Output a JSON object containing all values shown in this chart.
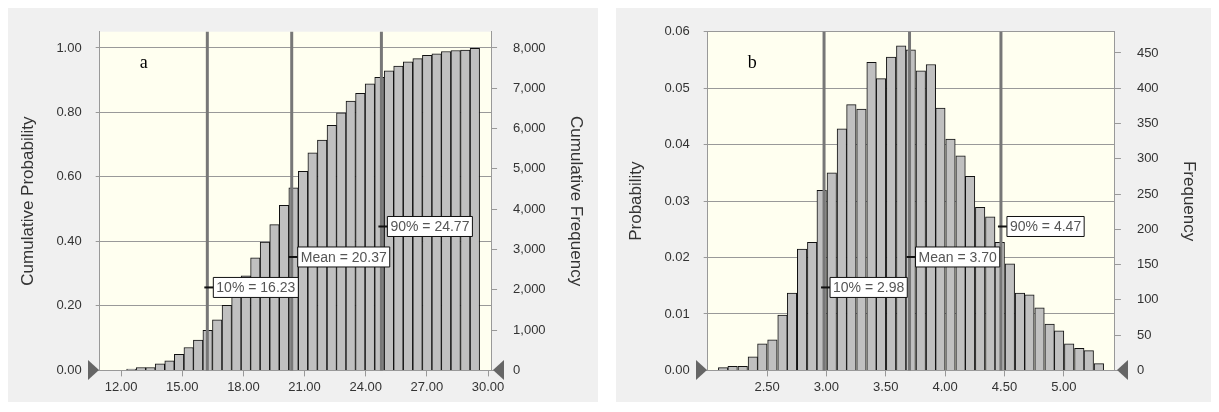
{
  "chart_data": [
    {
      "type": "histogram",
      "bins": [
        12.27,
        12.74,
        13.21,
        13.67,
        14.14,
        14.61,
        15.08,
        15.55,
        16.01,
        16.48,
        16.95,
        17.42,
        17.89,
        18.35,
        18.82,
        19.29,
        19.76,
        20.23,
        20.69,
        21.16,
        21.63,
        22.1,
        22.57,
        23.03,
        23.5,
        23.97,
        24.44,
        24.91,
        25.37,
        25.84,
        26.31,
        26.78,
        27.25,
        27.71,
        28.18,
        28.65,
        29.12,
        29.59
      ],
      "values": [
        0.004,
        0.009,
        0.009,
        0.02,
        0.03,
        0.05,
        0.071,
        0.094,
        0.124,
        0.157,
        0.202,
        0.248,
        0.293,
        0.349,
        0.398,
        0.452,
        0.512,
        0.566,
        0.617,
        0.675,
        0.714,
        0.76,
        0.799,
        0.835,
        0.859,
        0.889,
        0.909,
        0.929,
        0.944,
        0.957,
        0.967,
        0.977,
        0.982,
        0.989,
        0.992,
        0.993,
        0.999
      ],
      "color": "#c0c0c0",
      "xlim": [
        10.95,
        30.15
      ],
      "xticks": [
        {
          "value": 12,
          "label": "12.00"
        },
        {
          "value": 15,
          "label": "15.00"
        },
        {
          "value": 18,
          "label": "18.00"
        },
        {
          "value": 21,
          "label": "21.00"
        },
        {
          "value": 24,
          "label": "24.00"
        },
        {
          "value": 27,
          "label": "27.00"
        },
        {
          "value": 30,
          "label": "30.00"
        }
      ],
      "ylim": [
        0,
        1.05
      ],
      "yticks": [
        {
          "value": 0,
          "label": "0.00"
        },
        {
          "value": 0.2,
          "label": "0.20"
        },
        {
          "value": 0.4,
          "label": "0.40"
        },
        {
          "value": 0.6,
          "label": "0.60"
        },
        {
          "value": 0.8,
          "label": "0.80"
        },
        {
          "value": 1,
          "label": "1.00"
        }
      ],
      "y2lim": [
        0,
        8400
      ],
      "y2ticks": [
        0,
        {
          "value": 1000,
          "label": "1,000"
        },
        {
          "value": 2000,
          "label": "2,000"
        },
        {
          "value": 3000,
          "label": "3,000"
        },
        {
          "value": 4000,
          "label": "4,000"
        },
        {
          "value": 5000,
          "label": "5,000"
        },
        {
          "value": 6000,
          "label": "6,000"
        },
        {
          "value": 7000,
          "label": "7,000"
        },
        {
          "value": 8000,
          "label": "8,000"
        }
      ],
      "ylabel": "Cumulative Probability",
      "y2label": "Cumulative Frequency",
      "grid": "y",
      "ref_lines": [
        {
          "axis": "x",
          "value": 16.23,
          "label": "10% = 16.23",
          "color": "#777777"
        },
        {
          "axis": "x",
          "value": 20.37,
          "label": "Mean = 20.37",
          "color": "#777777"
        },
        {
          "axis": "x",
          "value": 24.77,
          "label": "90% = 24.77",
          "color": "#777777"
        }
      ],
      "annotations": [
        "a"
      ]
    },
    {
      "type": "histogram",
      "bins": [
        2.09,
        2.17,
        2.25,
        2.34,
        2.42,
        2.5,
        2.59,
        2.67,
        2.75,
        2.84,
        2.92,
        3.0,
        3.09,
        3.17,
        3.25,
        3.34,
        3.42,
        3.5,
        3.59,
        3.67,
        3.75,
        3.84,
        3.92,
        4.0,
        4.09,
        4.17,
        4.25,
        4.34,
        4.42,
        4.5,
        4.59,
        4.67,
        4.75,
        4.84,
        4.92,
        5.0,
        5.09,
        5.17,
        5.25,
        5.34
      ],
      "values": [
        0.0005,
        0.0007,
        0.0007,
        0.0024,
        0.0047,
        0.0054,
        0.0098,
        0.0137,
        0.0215,
        0.0227,
        0.0319,
        0.035,
        0.0428,
        0.0471,
        0.0463,
        0.0546,
        0.0517,
        0.0555,
        0.0575,
        0.0568,
        0.0531,
        0.0542,
        0.0465,
        0.041,
        0.038,
        0.0344,
        0.0289,
        0.0272,
        0.0227,
        0.0189,
        0.0137,
        0.0134,
        0.0111,
        0.0082,
        0.007,
        0.0047,
        0.0039,
        0.0035,
        0.0012
      ],
      "color": "#c0c0c0",
      "xlim": [
        2.0,
        5.43
      ],
      "xticks": [
        {
          "value": 2.5,
          "label": "2.50"
        },
        {
          "value": 3,
          "label": "3.00"
        },
        {
          "value": 3.5,
          "label": "3.50"
        },
        {
          "value": 4,
          "label": "4.00"
        },
        {
          "value": 4.5,
          "label": "4.50"
        },
        {
          "value": 5,
          "label": "5.00"
        }
      ],
      "ylim": [
        0,
        0.06
      ],
      "yticks": [
        {
          "value": 0,
          "label": "0.00"
        },
        {
          "value": 0.01,
          "label": "0.01"
        },
        {
          "value": 0.02,
          "label": "0.02"
        },
        {
          "value": 0.03,
          "label": "0.03"
        },
        {
          "value": 0.04,
          "label": "0.04"
        },
        {
          "value": 0.05,
          "label": "0.05"
        },
        {
          "value": 0.06,
          "label": "0.06"
        }
      ],
      "y2lim": [
        0,
        480
      ],
      "y2ticks": [
        0,
        50,
        100,
        150,
        200,
        250,
        300,
        350,
        400,
        450
      ],
      "ylabel": "Probability",
      "y2label": "Frequency",
      "grid": "y",
      "ref_lines": [
        {
          "axis": "x",
          "value": 2.98,
          "label": "10% = 2.98",
          "color": "#777777"
        },
        {
          "axis": "x",
          "value": 3.7,
          "label": "Mean = 3.70",
          "color": "#777777"
        },
        {
          "axis": "x",
          "value": 4.47,
          "label": "90% = 4.47",
          "color": "#777777"
        }
      ],
      "annotations": [
        "b"
      ]
    }
  ]
}
